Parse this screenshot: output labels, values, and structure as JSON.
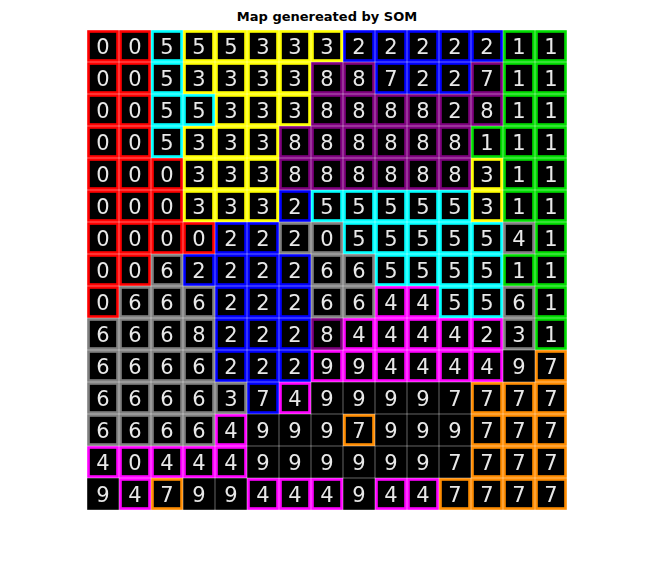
{
  "chart_data": {
    "type": "som_map",
    "title": "Map genereated by SOM",
    "colors": [
      "#ff0000",
      "#00dd00",
      "#0000ff",
      "#ffff00",
      "#ff00ff",
      "#00ffff",
      "#808080",
      "#ff8c00",
      "#800080",
      "#000000"
    ],
    "cells": [
      [
        "0",
        "0",
        "5",
        "5",
        "5",
        "3",
        "3",
        "3",
        "2",
        "2",
        "2",
        "2",
        "2",
        "1",
        "1"
      ],
      [
        "0",
        "0",
        "5",
        "3",
        "3",
        "3",
        "3",
        "8",
        "8",
        "7",
        "2",
        "2",
        "7",
        "1",
        "1"
      ],
      [
        "0",
        "0",
        "5",
        "5",
        "3",
        "3",
        "3",
        "8",
        "8",
        "8",
        "8",
        "2",
        "8",
        "1",
        "1"
      ],
      [
        "0",
        "0",
        "5",
        "3",
        "3",
        "3",
        "8",
        "8",
        "8",
        "8",
        "8",
        "8",
        "1",
        "1",
        "1"
      ],
      [
        "0",
        "0",
        "0",
        "3",
        "3",
        "3",
        "8",
        "8",
        "8",
        "8",
        "8",
        "8",
        "3",
        "1",
        "1"
      ],
      [
        "0",
        "0",
        "0",
        "3",
        "3",
        "3",
        "2",
        "5",
        "5",
        "5",
        "5",
        "5",
        "3",
        "1",
        "1"
      ],
      [
        "0",
        "0",
        "0",
        "0",
        "2",
        "2",
        "2",
        "0",
        "5",
        "5",
        "5",
        "5",
        "5",
        "4",
        "1"
      ],
      [
        "0",
        "0",
        "6",
        "2",
        "2",
        "2",
        "2",
        "6",
        "6",
        "5",
        "5",
        "5",
        "5",
        "1",
        "1"
      ],
      [
        "0",
        "6",
        "6",
        "6",
        "2",
        "2",
        "2",
        "6",
        "6",
        "4",
        "4",
        "5",
        "5",
        "6",
        "1"
      ],
      [
        "6",
        "6",
        "6",
        "8",
        "2",
        "2",
        "2",
        "8",
        "4",
        "4",
        "4",
        "4",
        "2",
        "3",
        "1"
      ],
      [
        "6",
        "6",
        "6",
        "6",
        "2",
        "2",
        "2",
        "9",
        "9",
        "4",
        "4",
        "4",
        "4",
        "9",
        "7"
      ],
      [
        "6",
        "6",
        "6",
        "6",
        "3",
        "7",
        "4",
        "9",
        "9",
        "9",
        "9",
        "7",
        "7",
        "7",
        "7"
      ],
      [
        "6",
        "6",
        "6",
        "6",
        "4",
        "9",
        "9",
        "9",
        "7",
        "9",
        "9",
        "9",
        "7",
        "7",
        "7"
      ],
      [
        "4",
        "0",
        "4",
        "4",
        "4",
        "9",
        "9",
        "9",
        "9",
        "9",
        "9",
        "7",
        "7",
        "7",
        "7"
      ],
      [
        "9",
        "4",
        "7",
        "9",
        "9",
        "4",
        "4",
        "4",
        "9",
        "4",
        "4",
        "7",
        "7",
        "7",
        "7"
      ]
    ],
    "labels": [
      [
        0,
        0,
        5,
        3,
        3,
        3,
        3,
        3,
        2,
        2,
        2,
        2,
        2,
        1,
        1
      ],
      [
        0,
        0,
        5,
        3,
        3,
        3,
        3,
        8,
        8,
        2,
        2,
        2,
        8,
        1,
        1
      ],
      [
        0,
        0,
        5,
        5,
        3,
        3,
        3,
        8,
        8,
        8,
        8,
        8,
        8,
        1,
        1
      ],
      [
        0,
        0,
        5,
        3,
        3,
        3,
        8,
        8,
        8,
        8,
        8,
        8,
        1,
        1,
        1
      ],
      [
        0,
        0,
        0,
        3,
        3,
        3,
        8,
        8,
        8,
        8,
        8,
        8,
        3,
        1,
        1
      ],
      [
        0,
        0,
        0,
        3,
        3,
        3,
        2,
        5,
        5,
        5,
        5,
        5,
        3,
        1,
        1
      ],
      [
        0,
        0,
        0,
        0,
        2,
        2,
        6,
        6,
        5,
        5,
        5,
        5,
        5,
        6,
        1
      ],
      [
        0,
        0,
        6,
        2,
        2,
        2,
        2,
        6,
        6,
        5,
        5,
        5,
        5,
        1,
        1
      ],
      [
        0,
        6,
        6,
        6,
        2,
        2,
        2,
        6,
        6,
        4,
        4,
        5,
        5,
        6,
        1
      ],
      [
        6,
        6,
        6,
        6,
        2,
        2,
        2,
        8,
        4,
        4,
        4,
        4,
        4,
        6,
        1
      ],
      [
        6,
        6,
        6,
        6,
        2,
        2,
        2,
        4,
        4,
        4,
        4,
        4,
        4,
        9,
        7
      ],
      [
        6,
        6,
        6,
        6,
        6,
        2,
        4,
        9,
        9,
        9,
        9,
        9,
        7,
        7,
        7
      ],
      [
        6,
        6,
        6,
        6,
        4,
        9,
        9,
        9,
        7,
        9,
        9,
        9,
        7,
        7,
        7
      ],
      [
        4,
        4,
        4,
        4,
        4,
        9,
        9,
        9,
        9,
        9,
        9,
        9,
        7,
        7,
        7
      ],
      [
        9,
        4,
        7,
        9,
        9,
        4,
        4,
        4,
        9,
        4,
        4,
        7,
        7,
        7,
        7
      ]
    ]
  }
}
